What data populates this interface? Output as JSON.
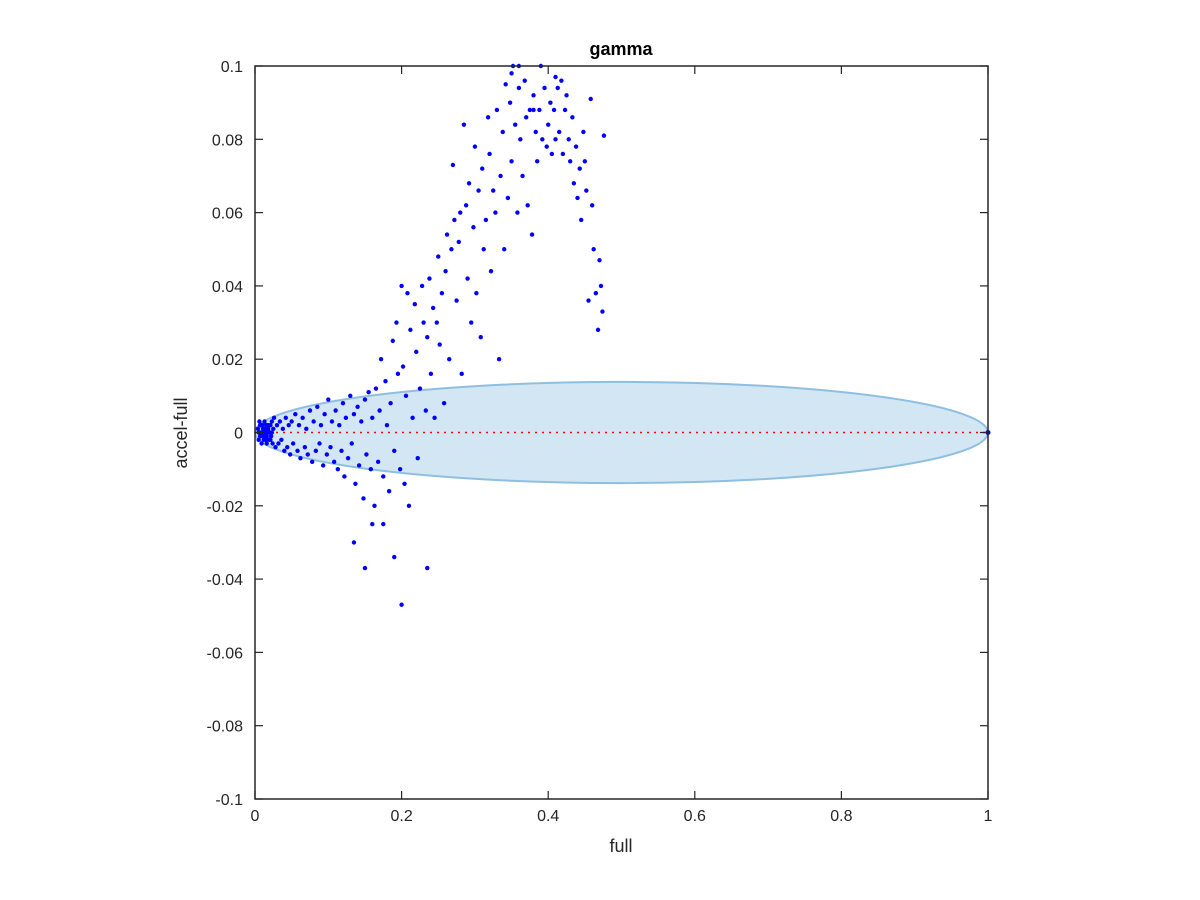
{
  "chart_data": {
    "type": "scatter",
    "title": "gamma",
    "xlabel": "full",
    "ylabel": "accel-full",
    "xlim": [
      0,
      1
    ],
    "ylim": [
      -0.1,
      0.1
    ],
    "xticks": [
      0,
      0.2,
      0.4,
      0.6,
      0.8,
      1
    ],
    "xtick_labels": [
      "0",
      "0.2",
      "0.4",
      "0.6",
      "0.8",
      "1"
    ],
    "yticks": [
      -0.1,
      -0.08,
      -0.06,
      -0.04,
      -0.02,
      0,
      0.02,
      0.04,
      0.06,
      0.08,
      0.1
    ],
    "ytick_labels": [
      "-0.1",
      "-0.08",
      "-0.06",
      "-0.04",
      "-0.02",
      "0",
      "0.02",
      "0.04",
      "0.06",
      "0.08",
      "0.1"
    ],
    "grid": false,
    "colors": {
      "points": "#0000ff",
      "ellipse_fill": "#d3e6f3",
      "ellipse_edge": "#8fbfe0",
      "reference_line": "#ff0000",
      "axes": "#262626"
    },
    "ellipse": {
      "center": [
        0.5,
        0.0
      ],
      "half_width": 0.5,
      "half_height": 0.0138
    },
    "reference_line": {
      "y": 0,
      "x_range": [
        0,
        1
      ],
      "style": "dotted"
    },
    "series": [
      {
        "points": [
          [
            0.004,
            0.001
          ],
          [
            0.005,
            -0.002
          ],
          [
            0.006,
            0.003
          ],
          [
            0.007,
            -0.001
          ],
          [
            0.008,
            0.002
          ],
          [
            0.009,
            -0.003
          ],
          [
            0.01,
            0.0
          ],
          [
            0.011,
            0.001
          ],
          [
            0.012,
            -0.002
          ],
          [
            0.013,
            0.003
          ],
          [
            0.014,
            -0.001
          ],
          [
            0.015,
            0.002
          ],
          [
            0.016,
            -0.003
          ],
          [
            0.017,
            0.0
          ],
          [
            0.018,
            0.001
          ],
          [
            0.019,
            -0.002
          ],
          [
            0.02,
            0.0
          ],
          [
            0.021,
            0.002
          ],
          [
            0.022,
            -0.001
          ],
          [
            0.023,
            0.003
          ],
          [
            0.024,
            -0.003
          ],
          [
            0.025,
            0.001
          ],
          [
            0.006,
            0.0
          ],
          [
            0.008,
            -0.001
          ],
          [
            0.01,
            0.002
          ],
          [
            0.012,
            0.0
          ],
          [
            0.014,
            0.001
          ],
          [
            0.016,
            -0.001
          ],
          [
            0.018,
            0.002
          ],
          [
            0.02,
            -0.002
          ],
          [
            0.005,
            0.0
          ],
          [
            0.007,
            0.002
          ],
          [
            0.009,
            0.0
          ],
          [
            0.011,
            -0.001
          ],
          [
            0.013,
            0.0
          ],
          [
            0.015,
            -0.002
          ],
          [
            0.017,
            0.002
          ],
          [
            0.019,
            0.0
          ],
          [
            0.021,
            -0.002
          ],
          [
            0.023,
            0.0
          ],
          [
            0.026,
            0.004
          ],
          [
            0.028,
            -0.004
          ],
          [
            0.03,
            0.002
          ],
          [
            0.032,
            -0.003
          ],
          [
            0.034,
            0.003
          ],
          [
            0.036,
            -0.002
          ],
          [
            0.038,
            0.001
          ],
          [
            0.04,
            -0.005
          ],
          [
            0.042,
            0.004
          ],
          [
            0.044,
            -0.004
          ],
          [
            0.046,
            0.002
          ],
          [
            0.048,
            -0.006
          ],
          [
            0.05,
            0.003
          ],
          [
            0.052,
            -0.003
          ],
          [
            0.055,
            0.005
          ],
          [
            0.058,
            -0.005
          ],
          [
            0.06,
            0.002
          ],
          [
            0.062,
            -0.007
          ],
          [
            0.065,
            0.004
          ],
          [
            0.068,
            -0.004
          ],
          [
            0.07,
            0.001
          ],
          [
            0.072,
            -0.006
          ],
          [
            0.075,
            0.006
          ],
          [
            0.078,
            -0.008
          ],
          [
            0.08,
            0.003
          ],
          [
            0.083,
            -0.005
          ],
          [
            0.085,
            0.007
          ],
          [
            0.088,
            -0.003
          ],
          [
            0.09,
            0.002
          ],
          [
            0.093,
            -0.009
          ],
          [
            0.095,
            0.005
          ],
          [
            0.098,
            -0.006
          ],
          [
            0.1,
            0.009
          ],
          [
            0.103,
            -0.004
          ],
          [
            0.105,
            0.003
          ],
          [
            0.108,
            -0.008
          ],
          [
            0.11,
            0.006
          ],
          [
            0.113,
            -0.01
          ],
          [
            0.115,
            0.002
          ],
          [
            0.118,
            -0.005
          ],
          [
            0.12,
            0.008
          ],
          [
            0.122,
            -0.012
          ],
          [
            0.124,
            0.004
          ],
          [
            0.127,
            -0.007
          ],
          [
            0.13,
            0.01
          ],
          [
            0.132,
            -0.003
          ],
          [
            0.135,
            0.005
          ],
          [
            0.137,
            -0.014
          ],
          [
            0.14,
            0.007
          ],
          [
            0.142,
            -0.009
          ],
          [
            0.145,
            0.003
          ],
          [
            0.148,
            -0.018
          ],
          [
            0.15,
            0.009
          ],
          [
            0.152,
            -0.006
          ],
          [
            0.155,
            0.011
          ],
          [
            0.158,
            -0.01
          ],
          [
            0.16,
            0.004
          ],
          [
            0.163,
            -0.02
          ],
          [
            0.165,
            0.012
          ],
          [
            0.168,
            -0.008
          ],
          [
            0.17,
            0.006
          ],
          [
            0.172,
            0.02
          ],
          [
            0.175,
            -0.012
          ],
          [
            0.178,
            0.014
          ],
          [
            0.18,
            0.002
          ],
          [
            0.183,
            -0.016
          ],
          [
            0.185,
            0.008
          ],
          [
            0.188,
            0.025
          ],
          [
            0.19,
            -0.005
          ],
          [
            0.193,
            0.03
          ],
          [
            0.195,
            0.016
          ],
          [
            0.198,
            -0.01
          ],
          [
            0.2,
            0.04
          ],
          [
            0.202,
            0.018
          ],
          [
            0.204,
            -0.014
          ],
          [
            0.206,
            0.01
          ],
          [
            0.208,
            0.038
          ],
          [
            0.21,
            -0.02
          ],
          [
            0.212,
            0.028
          ],
          [
            0.215,
            0.004
          ],
          [
            0.218,
            0.035
          ],
          [
            0.22,
            0.022
          ],
          [
            0.222,
            -0.007
          ],
          [
            0.225,
            0.012
          ],
          [
            0.228,
            0.04
          ],
          [
            0.23,
            0.03
          ],
          [
            0.233,
            0.006
          ],
          [
            0.235,
            0.026
          ],
          [
            0.238,
            0.042
          ],
          [
            0.24,
            0.016
          ],
          [
            0.243,
            0.034
          ],
          [
            0.245,
            0.004
          ],
          [
            0.248,
            0.03
          ],
          [
            0.25,
            0.048
          ],
          [
            0.252,
            0.024
          ],
          [
            0.255,
            0.038
          ],
          [
            0.258,
            0.008
          ],
          [
            0.26,
            0.044
          ],
          [
            0.262,
            0.054
          ],
          [
            0.265,
            0.02
          ],
          [
            0.268,
            0.05
          ],
          [
            0.27,
            0.073
          ],
          [
            0.272,
            0.058
          ],
          [
            0.275,
            0.036
          ],
          [
            0.278,
            0.052
          ],
          [
            0.28,
            0.06
          ],
          [
            0.282,
            0.016
          ],
          [
            0.285,
            0.084
          ],
          [
            0.288,
            0.062
          ],
          [
            0.29,
            0.042
          ],
          [
            0.292,
            0.068
          ],
          [
            0.295,
            0.03
          ],
          [
            0.298,
            0.056
          ],
          [
            0.3,
            0.078
          ],
          [
            0.302,
            0.038
          ],
          [
            0.305,
            0.066
          ],
          [
            0.308,
            0.026
          ],
          [
            0.31,
            0.072
          ],
          [
            0.312,
            0.05
          ],
          [
            0.315,
            0.058
          ],
          [
            0.318,
            0.086
          ],
          [
            0.32,
            0.076
          ],
          [
            0.322,
            0.044
          ],
          [
            0.325,
            0.066
          ],
          [
            0.328,
            0.06
          ],
          [
            0.33,
            0.088
          ],
          [
            0.333,
            0.02
          ],
          [
            0.335,
            0.07
          ],
          [
            0.338,
            0.082
          ],
          [
            0.34,
            0.05
          ],
          [
            0.342,
            0.095
          ],
          [
            0.345,
            0.064
          ],
          [
            0.348,
            0.09
          ],
          [
            0.35,
            0.074
          ],
          [
            0.352,
            0.1
          ],
          [
            0.355,
            0.084
          ],
          [
            0.358,
            0.06
          ],
          [
            0.36,
            0.094
          ],
          [
            0.362,
            0.08
          ],
          [
            0.365,
            0.07
          ],
          [
            0.368,
            0.096
          ],
          [
            0.37,
            0.086
          ],
          [
            0.372,
            0.062
          ],
          [
            0.375,
            0.088
          ],
          [
            0.378,
            0.054
          ],
          [
            0.38,
            0.092
          ],
          [
            0.383,
            0.082
          ],
          [
            0.385,
            0.074
          ],
          [
            0.388,
            0.088
          ],
          [
            0.39,
            0.1
          ],
          [
            0.392,
            0.08
          ],
          [
            0.395,
            0.094
          ],
          [
            0.398,
            0.078
          ],
          [
            0.4,
            0.084
          ],
          [
            0.403,
            0.09
          ],
          [
            0.405,
            0.076
          ],
          [
            0.408,
            0.088
          ],
          [
            0.41,
            0.08
          ],
          [
            0.413,
            0.094
          ],
          [
            0.415,
            0.082
          ],
          [
            0.418,
            0.096
          ],
          [
            0.42,
            0.076
          ],
          [
            0.423,
            0.088
          ],
          [
            0.425,
            0.092
          ],
          [
            0.428,
            0.08
          ],
          [
            0.43,
            0.074
          ],
          [
            0.433,
            0.086
          ],
          [
            0.435,
            0.068
          ],
          [
            0.438,
            0.078
          ],
          [
            0.44,
            0.064
          ],
          [
            0.443,
            0.072
          ],
          [
            0.445,
            0.058
          ],
          [
            0.448,
            0.082
          ],
          [
            0.45,
            0.074
          ],
          [
            0.452,
            0.066
          ],
          [
            0.455,
            0.036
          ],
          [
            0.458,
            0.091
          ],
          [
            0.46,
            0.062
          ],
          [
            0.462,
            0.05
          ],
          [
            0.465,
            0.038
          ],
          [
            0.468,
            0.028
          ],
          [
            0.47,
            0.047
          ],
          [
            0.472,
            0.04
          ],
          [
            0.474,
            0.033
          ],
          [
            0.476,
            0.081
          ],
          [
            0.15,
            -0.037
          ],
          [
            0.19,
            -0.034
          ],
          [
            0.2,
            -0.047
          ],
          [
            0.235,
            -0.037
          ],
          [
            0.16,
            -0.025
          ],
          [
            0.135,
            -0.03
          ],
          [
            0.175,
            -0.025
          ],
          [
            0.38,
            0.088
          ],
          [
            0.36,
            0.1
          ],
          [
            0.41,
            0.097
          ],
          [
            0.35,
            0.098
          ]
        ]
      }
    ]
  }
}
